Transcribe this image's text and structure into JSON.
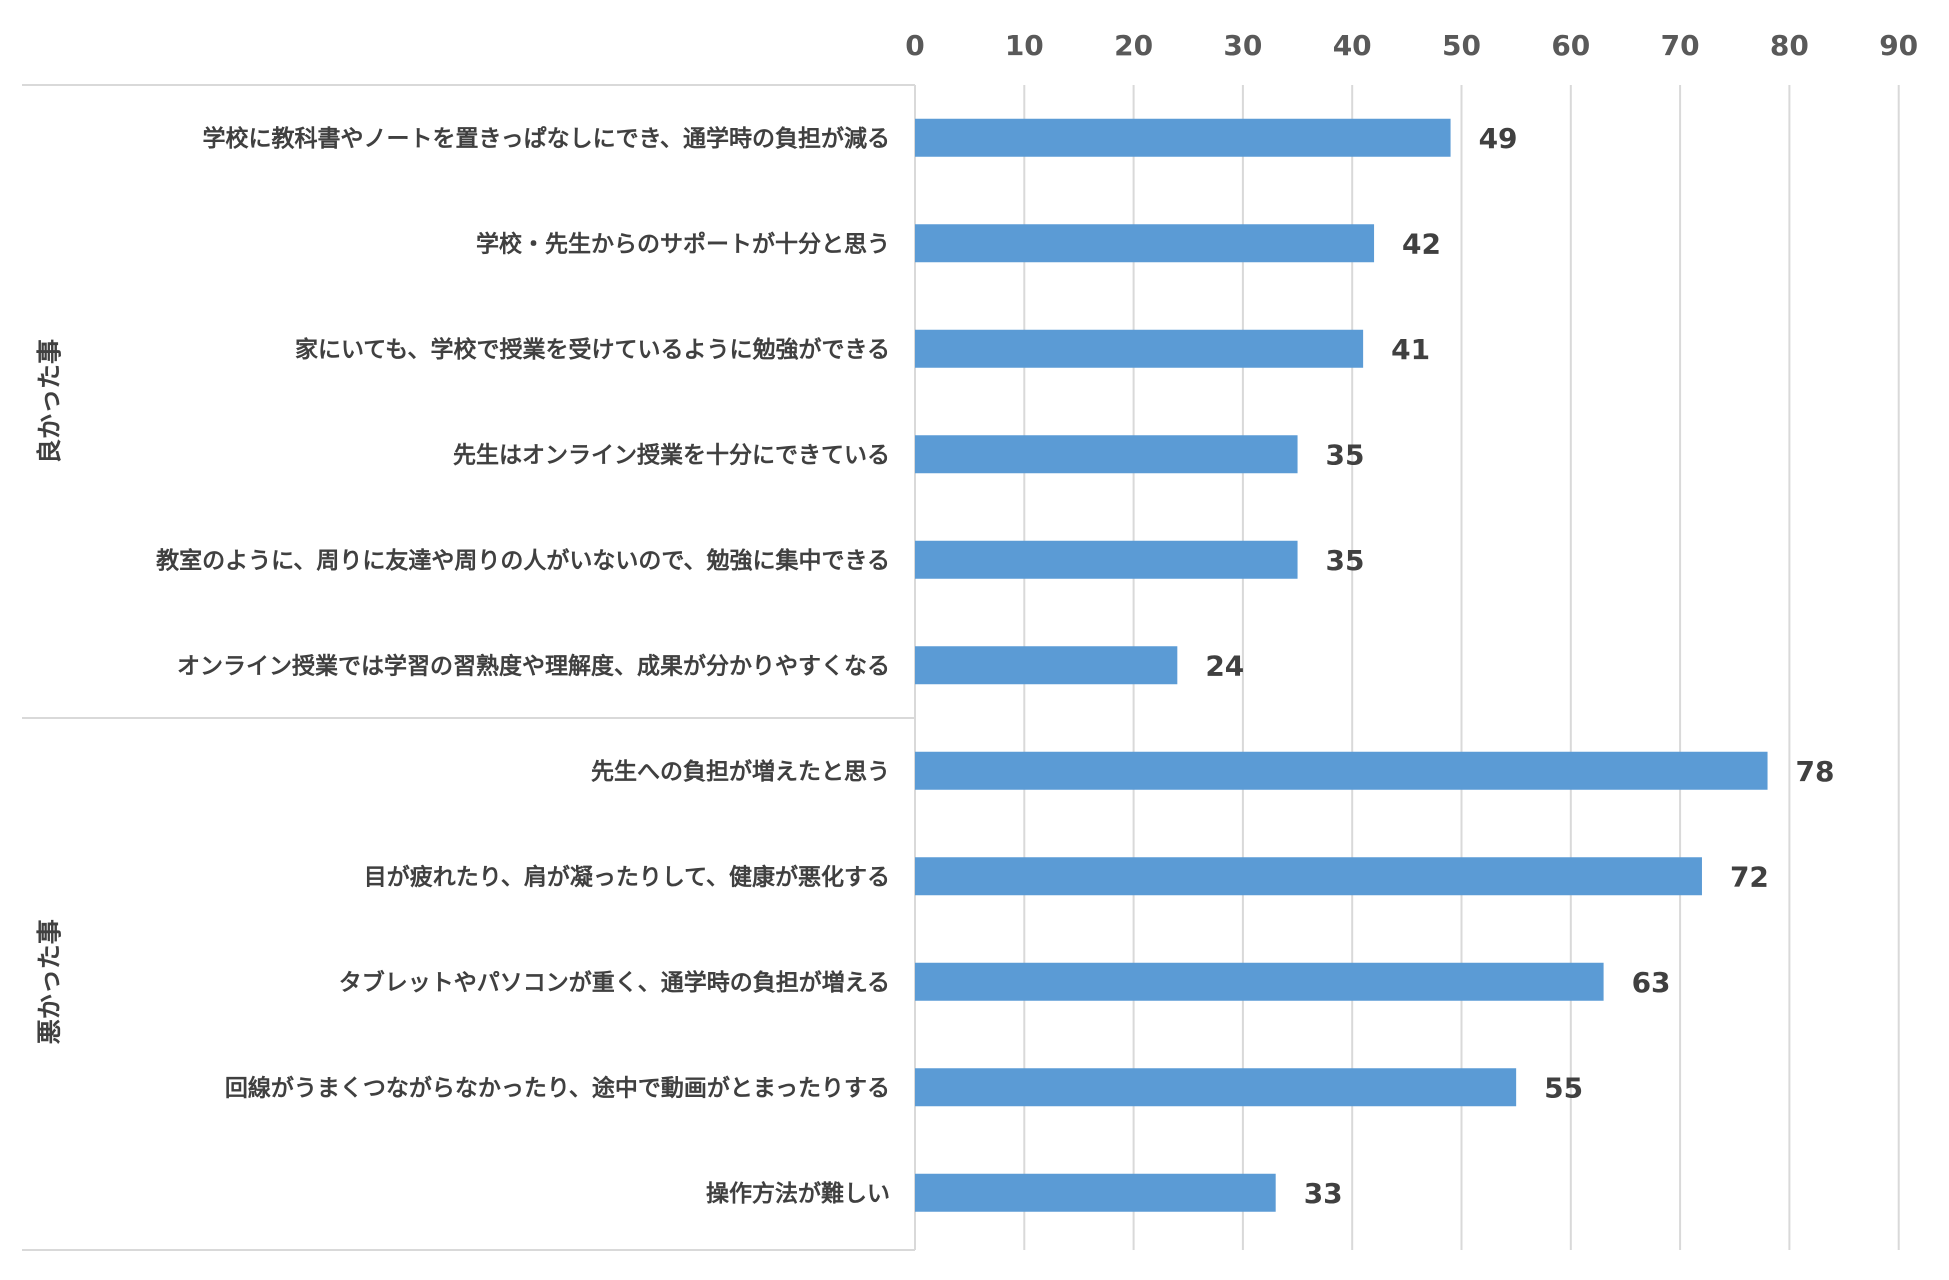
{
  "chart_data": {
    "type": "bar",
    "orientation": "horizontal",
    "xlim": [
      0,
      90
    ],
    "ticks": [
      "0",
      "10",
      "20",
      "30",
      "40",
      "50",
      "60",
      "70",
      "80",
      "90"
    ],
    "tick_values": [
      0,
      10,
      20,
      30,
      40,
      50,
      60,
      70,
      80,
      90
    ],
    "grid": true,
    "bar_color": "#5B9BD5",
    "groups": [
      {
        "name": "良かった事",
        "categories": [
          "学校に教科書やノートを置きっぱなしにでき、通学時の負担が減る",
          "学校・先生からのサポートが十分と思う",
          "家にいても、学校で授業を受けているように勉強ができる",
          "先生はオンライン授業を十分にできている",
          "教室のように、周りに友達や周りの人がいないので、勉強に集中できる",
          "オンライン授業では学習の習熟度や理解度、成果が分かりやすくなる"
        ],
        "values": [
          49,
          42,
          41,
          35,
          35,
          24
        ],
        "value_labels": [
          "49",
          "42",
          "41",
          "35",
          "35",
          "24"
        ]
      },
      {
        "name": "悪かった事",
        "categories": [
          "先生への負担が増えたと思う",
          "目が疲れたり、肩が凝ったりして、健康が悪化する",
          "タブレットやパソコンが重く、通学時の負担が増える",
          "回線がうまくつながらなかったり、途中で動画がとまったりする",
          "操作方法が難しい"
        ],
        "values": [
          78,
          72,
          63,
          55,
          33
        ],
        "value_labels": [
          "78",
          "72",
          "63",
          "55",
          "33"
        ]
      }
    ]
  }
}
